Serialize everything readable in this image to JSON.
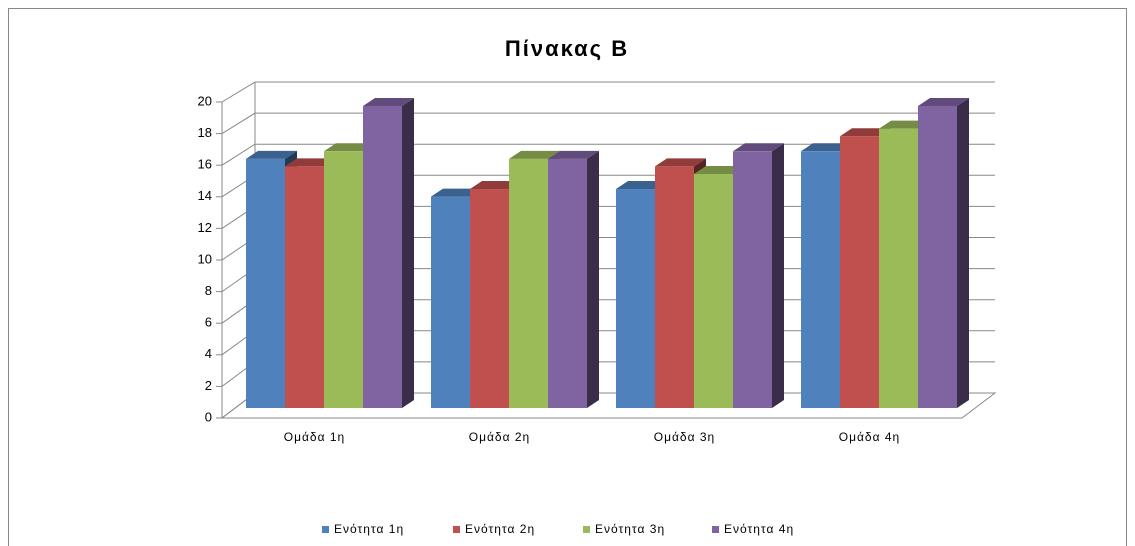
{
  "chart_data": {
    "type": "bar3d",
    "title": "Πίνακας Β",
    "categories": [
      "Ομάδα 1η",
      "Ομάδα 2η",
      "Ομάδα 3η",
      "Ομάδα 4η"
    ],
    "series": [
      {
        "name": "Ενότητα 1η",
        "color": "#4f81bd",
        "values": [
          16.5,
          14,
          14.5,
          17
        ]
      },
      {
        "name": "Ενότητα 2η",
        "color": "#c0504d",
        "values": [
          16,
          14.5,
          16,
          18
        ]
      },
      {
        "name": "Ενότητα 3η",
        "color": "#9bbb59",
        "values": [
          17,
          16.5,
          15.5,
          18.5
        ]
      },
      {
        "name": "Ενότητα 4η",
        "color": "#8064a2",
        "values": [
          20,
          16.5,
          17,
          20
        ]
      }
    ],
    "ylim": [
      0,
      20
    ],
    "yticks": [
      0,
      2,
      4,
      6,
      8,
      10,
      12,
      14,
      16,
      18,
      20
    ],
    "grid": true,
    "legend": "bottom"
  }
}
